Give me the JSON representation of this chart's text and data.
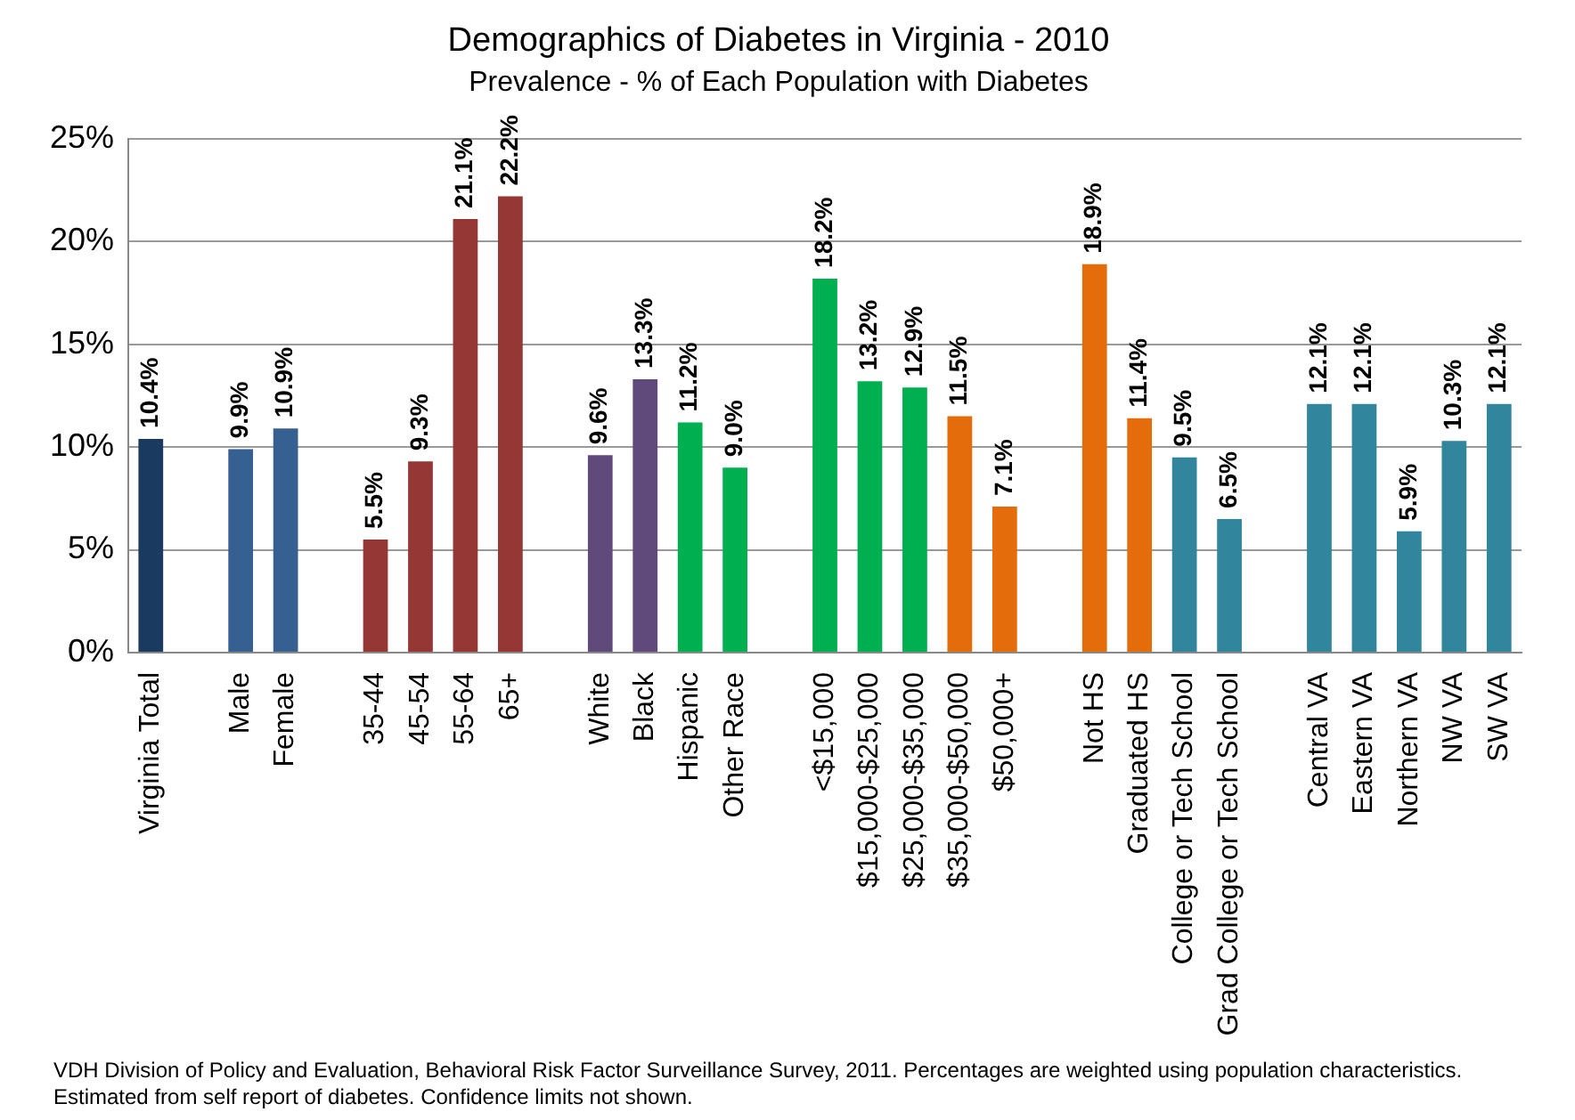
{
  "chart_data": {
    "type": "bar",
    "title": "Demographics of Diabetes in Virginia - 2010",
    "subtitle": "Prevalence - % of Each Population with Diabetes",
    "categories": [
      "Virginia Total",
      null,
      "Male",
      "Female",
      null,
      "35-44",
      "45-54",
      "55-64",
      "65+",
      null,
      "White",
      "Black",
      "Hispanic",
      "Other Race",
      null,
      "<$15,000",
      "$15,000-$25,000",
      "$25,000-$35,000",
      "$35,000-$50,000",
      "$50,000+",
      null,
      "Not HS",
      "Graduated HS",
      "College or Tech School",
      "Grad College or Tech School",
      null,
      "Central VA",
      "Eastern VA",
      "Northern VA",
      "NW VA",
      "SW VA"
    ],
    "values": [
      10.4,
      null,
      9.9,
      10.9,
      null,
      5.5,
      9.3,
      21.1,
      22.2,
      null,
      9.6,
      13.3,
      11.2,
      9.0,
      null,
      18.2,
      13.2,
      12.9,
      11.5,
      7.1,
      null,
      18.9,
      11.4,
      9.5,
      6.5,
      null,
      12.1,
      12.1,
      5.9,
      10.3,
      12.1
    ],
    "value_labels": [
      "10.4%",
      null,
      "9.9%",
      "10.9%",
      null,
      "5.5%",
      "9.3%",
      "21.1%",
      "22.2%",
      null,
      "9.6%",
      "13.3%",
      "11.2%",
      "9.0%",
      null,
      "18.2%",
      "13.2%",
      "12.9%",
      "11.5%",
      "7.1%",
      null,
      "18.9%",
      "11.4%",
      "9.5%",
      "6.5%",
      null,
      "12.1%",
      "12.1%",
      "5.9%",
      "10.3%",
      "12.1%"
    ],
    "colors": [
      "#1b3a5f",
      null,
      "#366092",
      "#366092",
      null,
      "#953735",
      "#953735",
      "#953735",
      "#953735",
      null,
      "#604a7b",
      "#604a7b",
      "#00b050",
      "#00b050",
      null,
      "#00b050",
      "#00b050",
      "#00b050",
      "#e46c0a",
      "#e46c0a",
      null,
      "#e46c0a",
      "#e46c0a",
      "#31859c",
      "#31859c",
      null,
      "#31859c",
      "#31859c",
      "#31859c",
      "#31859c",
      "#31859c"
    ],
    "ylim": [
      0,
      25
    ],
    "yticks": [
      {
        "value": 0,
        "label": "0%"
      },
      {
        "value": 5,
        "label": "5%"
      },
      {
        "value": 10,
        "label": "10%"
      },
      {
        "value": 15,
        "label": "15%"
      },
      {
        "value": 20,
        "label": "20%"
      },
      {
        "value": 25,
        "label": "25%"
      }
    ],
    "grid": "y",
    "legend": false,
    "annotations": [
      "VDH Division of Policy and Evaluation, Behavioral Risk Factor Surveillance Survey, 2011. Percentages are weighted using population characteristics.  Estimated from self report of  diabetes.  Confidence limits not shown."
    ]
  }
}
